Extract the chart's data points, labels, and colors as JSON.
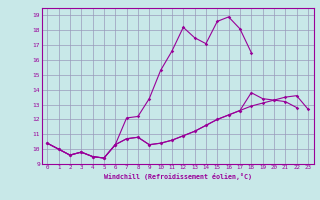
{
  "bg_color": "#c8e8e8",
  "grid_color": "#9999bb",
  "line_color": "#990099",
  "xlabel": "Windchill (Refroidissement éolien,°C)",
  "xlim": [
    -0.5,
    23.5
  ],
  "ylim": [
    9,
    19.5
  ],
  "xticks": [
    0,
    1,
    2,
    3,
    4,
    5,
    6,
    7,
    8,
    9,
    10,
    11,
    12,
    13,
    14,
    15,
    16,
    17,
    18,
    19,
    20,
    21,
    22,
    23
  ],
  "yticks": [
    9,
    10,
    11,
    12,
    13,
    14,
    15,
    16,
    17,
    18,
    19
  ],
  "line1_x": [
    0,
    1,
    2,
    3,
    4,
    5,
    6,
    7,
    8,
    9,
    10,
    11,
    12,
    13,
    14,
    15,
    16,
    17,
    18,
    19,
    20,
    21,
    22,
    23
  ],
  "line1_y": [
    10.4,
    10.0,
    9.6,
    9.8,
    9.5,
    9.4,
    10.3,
    10.7,
    10.8,
    10.3,
    10.4,
    10.6,
    10.9,
    11.2,
    11.6,
    12.0,
    12.3,
    12.6,
    12.9,
    13.1,
    13.3,
    13.5,
    13.6,
    12.7
  ],
  "line2_x": [
    0,
    1,
    2,
    3,
    4,
    5,
    6,
    7,
    8,
    9,
    10,
    11,
    12,
    13,
    14,
    15,
    16,
    17,
    18
  ],
  "line2_y": [
    10.4,
    10.0,
    9.6,
    9.8,
    9.5,
    9.4,
    10.3,
    12.1,
    12.2,
    13.4,
    15.3,
    16.6,
    18.2,
    17.5,
    17.1,
    18.6,
    18.9,
    18.1,
    16.5
  ],
  "line3_x": [
    0,
    1,
    2,
    3,
    4,
    5,
    6,
    7,
    8,
    9,
    10,
    11,
    12,
    13,
    14,
    15,
    16,
    17,
    18,
    19,
    20,
    21,
    22
  ],
  "line3_y": [
    10.4,
    10.0,
    9.6,
    9.8,
    9.5,
    9.4,
    10.3,
    10.7,
    10.8,
    10.3,
    10.4,
    10.6,
    10.9,
    11.2,
    11.6,
    12.0,
    12.3,
    12.6,
    13.8,
    13.4,
    13.3,
    13.2,
    12.8
  ]
}
